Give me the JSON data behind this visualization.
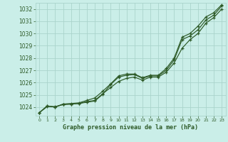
{
  "title": "Graphe pression niveau de la mer (hPa)",
  "bg_color": "#caeee8",
  "grid_color": "#aad4cc",
  "line_color": "#2d5a27",
  "x_labels": [
    "0",
    "1",
    "2",
    "3",
    "4",
    "5",
    "6",
    "7",
    "8",
    "9",
    "10",
    "11",
    "12",
    "13",
    "14",
    "15",
    "16",
    "17",
    "18",
    "19",
    "20",
    "21",
    "22",
    "23"
  ],
  "ylim": [
    1023.3,
    1032.5
  ],
  "yticks": [
    1024,
    1025,
    1026,
    1027,
    1028,
    1029,
    1030,
    1031,
    1032
  ],
  "line_actual": [
    1023.55,
    1024.1,
    1024.0,
    1024.25,
    1024.25,
    1024.3,
    1024.4,
    1024.5,
    1025.05,
    1025.85,
    1026.45,
    1026.6,
    1026.65,
    1026.35,
    1026.55,
    1026.55,
    1027.0,
    1027.85,
    1029.5,
    1029.8,
    1030.3,
    1031.1,
    1031.5,
    1032.25
  ],
  "line_low": [
    1023.55,
    1024.05,
    1024.05,
    1024.2,
    1024.25,
    1024.3,
    1024.45,
    1024.55,
    1025.1,
    1025.6,
    1026.1,
    1026.35,
    1026.45,
    1026.2,
    1026.45,
    1026.45,
    1026.85,
    1027.6,
    1028.8,
    1029.5,
    1030.0,
    1030.85,
    1031.3,
    1032.0
  ],
  "line_high": [
    1023.55,
    1024.1,
    1024.0,
    1024.25,
    1024.3,
    1024.35,
    1024.55,
    1024.75,
    1025.3,
    1025.9,
    1026.55,
    1026.7,
    1026.7,
    1026.4,
    1026.6,
    1026.6,
    1027.15,
    1028.0,
    1029.7,
    1030.0,
    1030.6,
    1031.35,
    1031.7,
    1032.35
  ]
}
